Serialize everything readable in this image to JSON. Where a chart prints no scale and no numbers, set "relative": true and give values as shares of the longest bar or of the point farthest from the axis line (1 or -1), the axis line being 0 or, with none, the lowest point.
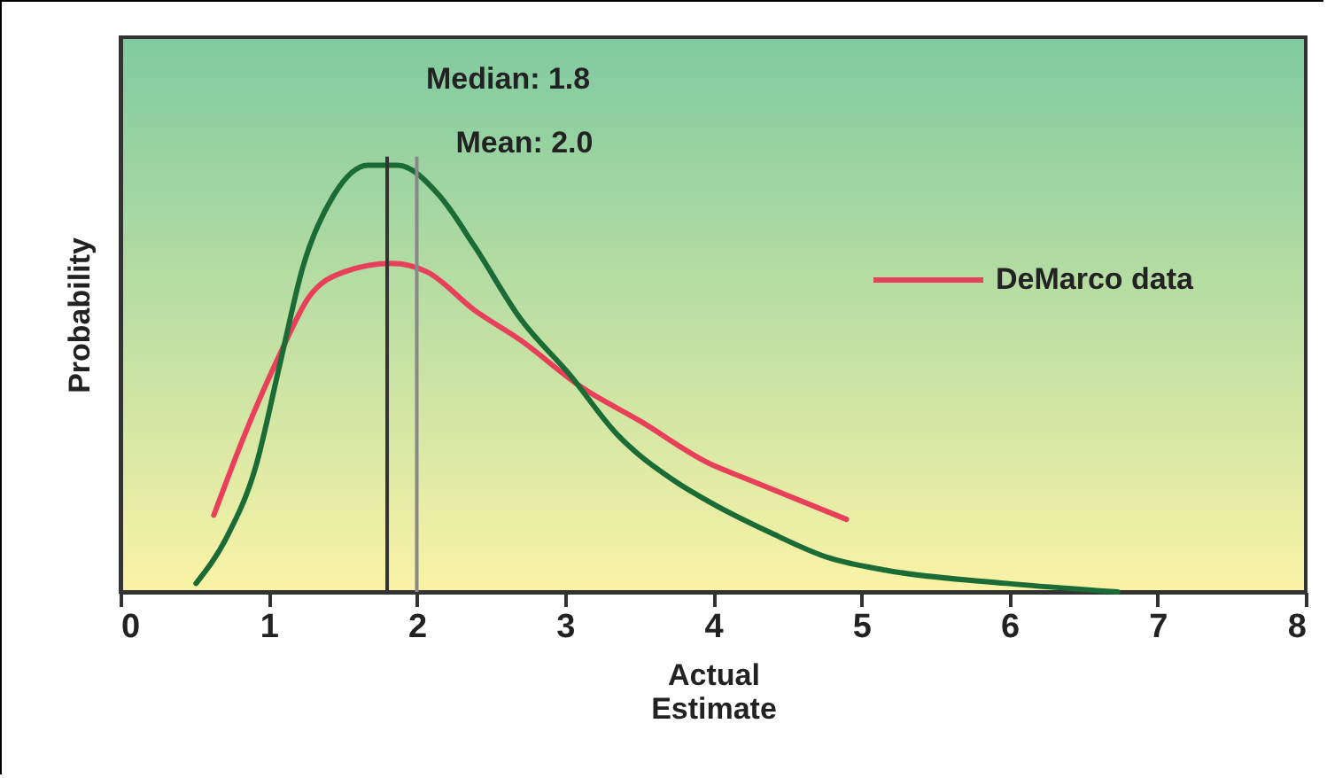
{
  "chart_data": {
    "type": "line",
    "relative": true,
    "xlabel": "Actual\nEstimate",
    "ylabel": "Probability",
    "xlim": [
      0,
      8
    ],
    "xticks": [
      0,
      1,
      2,
      3,
      4,
      5,
      6,
      7,
      8
    ],
    "tick_labels": "x",
    "legend": "top right",
    "grid": false,
    "series": [
      {
        "name": "DeMarco data",
        "color": "#e8405a",
        "x": [
          0.63,
          0.84,
          1.08,
          1.27,
          1.51,
          1.83,
          2.07,
          2.39,
          2.7,
          3.11,
          3.51,
          3.98,
          4.19,
          4.9
        ],
        "values": [
          0.18,
          0.37,
          0.56,
          0.69,
          0.75,
          0.77,
          0.75,
          0.66,
          0.59,
          0.48,
          0.4,
          0.3,
          0.27,
          0.17
        ]
      },
      {
        "color": "#1a6b35",
        "x": [
          0.51,
          0.72,
          0.91,
          1.08,
          1.23,
          1.44,
          1.67,
          1.87,
          2.15,
          2.39,
          2.7,
          3.03,
          3.35,
          3.74,
          3.98,
          4.38,
          4.78,
          5.18,
          5.98,
          6.73
        ],
        "values": [
          0.02,
          0.13,
          0.29,
          0.54,
          0.76,
          0.93,
          1.0,
          1.0,
          0.93,
          0.81,
          0.64,
          0.51,
          0.37,
          0.26,
          0.21,
          0.14,
          0.08,
          0.05,
          0.02,
          0.0
        ]
      }
    ],
    "ref_lines": [
      {
        "axis": "x",
        "value": 1.8,
        "label": "Median: 1.8",
        "color": "#333333"
      },
      {
        "axis": "x",
        "value": 2.0,
        "label": "Mean: 2.0",
        "color": "#888888"
      }
    ]
  }
}
